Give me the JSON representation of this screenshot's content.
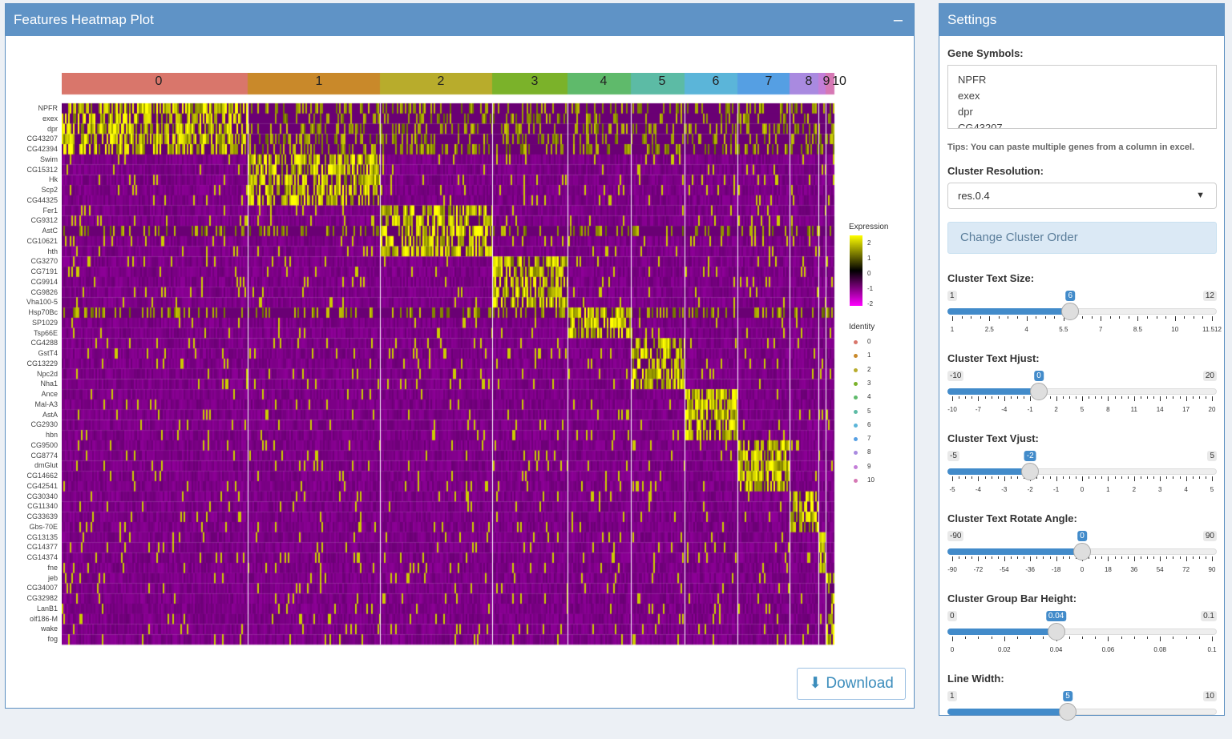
{
  "plot_panel": {
    "title": "Features Heatmap Plot",
    "collapse_icon": "minus-icon",
    "download_label": "Download",
    "download_icon": "download-icon"
  },
  "chart_data": {
    "type": "heatmap",
    "clusters": [
      "0",
      "1",
      "2",
      "3",
      "4",
      "5",
      "6",
      "7",
      "8",
      "9",
      "10"
    ],
    "cluster_colors": [
      "#d9766b",
      "#c9892a",
      "#b8ac2c",
      "#7bb22a",
      "#5fba6b",
      "#5cbba5",
      "#5bb5d9",
      "#559fe3",
      "#a98ae0",
      "#c37ed8",
      "#d678b4"
    ],
    "genes": [
      "NPFR",
      "exex",
      "dpr",
      "CG43207",
      "CG42394",
      "Swim",
      "CG15312",
      "Hk",
      "Scp2",
      "CG44325",
      "Fer1",
      "CG9312",
      "AstC",
      "CG10621",
      "hth",
      "CG3270",
      "CG7191",
      "CG9914",
      "CG9826",
      "Vha100-5",
      "Hsp70Bc",
      "SP1029",
      "Tsp66E",
      "CG4288",
      "GstT4",
      "CG13229",
      "Npc2d",
      "Nha1",
      "Ance",
      "Mal-A3",
      "AstA",
      "CG2930",
      "hbn",
      "CG9500",
      "CG8774",
      "dmGlut",
      "CG14662",
      "CG42541",
      "CG30340",
      "CG11340",
      "CG33639",
      "Gbs-70E",
      "CG13135",
      "CG14377",
      "CG14374",
      "fne",
      "jeb",
      "CG34007",
      "CG32982",
      "LanB1",
      "olf186-M",
      "wake",
      "fog"
    ],
    "expression_legend": {
      "title": "Expression",
      "ticks": [
        "2",
        "1",
        "0",
        "-1",
        "-2"
      ],
      "range": [
        -2.5,
        2.5
      ],
      "colors": [
        "#ff00ff",
        "#000000",
        "#ffff00"
      ]
    },
    "identity_legend": {
      "title": "Identity"
    }
  },
  "settings": {
    "title": "Settings",
    "gene_symbols_label": "Gene Symbols:",
    "gene_symbols_value": [
      "NPFR",
      "exex",
      "dpr",
      "CG43207"
    ],
    "tip": "Tips: You can paste multiple genes from a column in excel.",
    "resolution_label": "Cluster Resolution:",
    "resolution_value": "res.0.4",
    "change_order_label": "Change Cluster Order",
    "sliders": [
      {
        "label": "Cluster Text Size:",
        "min": "1",
        "max": "12",
        "value": "6",
        "ticks": [
          "1",
          "2.5",
          "4",
          "5.5",
          "7",
          "8.5",
          "10",
          "11.512"
        ]
      },
      {
        "label": "Cluster Text Hjust:",
        "min": "-10",
        "max": "20",
        "value": "0",
        "ticks": [
          "-10",
          "-7",
          "-4",
          "-1",
          "2",
          "5",
          "8",
          "11",
          "14",
          "17",
          "20"
        ]
      },
      {
        "label": "Cluster Text Vjust:",
        "min": "-5",
        "max": "5",
        "value": "-2",
        "ticks": [
          "-5",
          "-4",
          "-3",
          "-2",
          "-1",
          "0",
          "1",
          "2",
          "3",
          "4",
          "5"
        ]
      },
      {
        "label": "Cluster Text Rotate Angle:",
        "min": "-90",
        "max": "90",
        "value": "0",
        "ticks": [
          "-90",
          "-72",
          "-54",
          "-36",
          "-18",
          "0",
          "18",
          "36",
          "54",
          "72",
          "90"
        ]
      },
      {
        "label": "Cluster Group Bar Height:",
        "min": "0",
        "max": "0.1",
        "value": "0.04",
        "ticks": [
          "0",
          "0.02",
          "0.04",
          "0.06",
          "0.08",
          "0.1"
        ]
      },
      {
        "label": "Line Width:",
        "min": "1",
        "max": "10",
        "value": "5",
        "ticks": []
      }
    ]
  }
}
